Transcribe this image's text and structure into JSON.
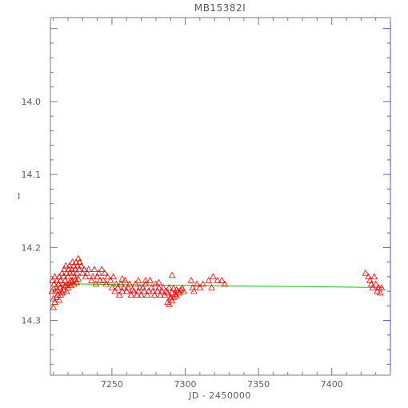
{
  "chart_data": {
    "type": "scatter",
    "title": "MB15382I",
    "xlabel": "JD - 2450000",
    "ylabel": "I",
    "xlim": [
      7208,
      7440
    ],
    "ylim": [
      14.375,
      13.885
    ],
    "y_inverted": true,
    "x_ticks": [
      7250,
      7300,
      7350,
      7400
    ],
    "x_tick_labels": [
      "7250",
      "7300",
      "7350",
      "7400"
    ],
    "y_ticks": [
      14.0,
      14.1,
      14.2,
      14.3
    ],
    "y_tick_labels": [
      "14.0",
      "14.1",
      "14.2",
      "14.3"
    ],
    "grid": false,
    "colors": {
      "axes": "#7a7a7a",
      "text": "#5a5a5a",
      "observed": "#ff0000",
      "model": "#00c800",
      "right_axis": "#5555cc"
    },
    "series": [
      {
        "marker": "triangle-open",
        "color": "#ff0000",
        "points": [
          [
            7209,
            14.26
          ],
          [
            7209.5,
            14.245
          ],
          [
            7210,
            14.27
          ],
          [
            7210.5,
            14.25
          ],
          [
            7211,
            14.24
          ],
          [
            7211.5,
            14.26
          ],
          [
            7212,
            14.255
          ],
          [
            7212.5,
            14.245
          ],
          [
            7213,
            14.265
          ],
          [
            7213.5,
            14.25
          ],
          [
            7214,
            14.24
          ],
          [
            7214.5,
            14.255
          ],
          [
            7215,
            14.245
          ],
          [
            7215.5,
            14.26
          ],
          [
            7216,
            14.235
          ],
          [
            7216.5,
            14.25
          ],
          [
            7217,
            14.24
          ],
          [
            7217.5,
            14.23
          ],
          [
            7218,
            14.245
          ],
          [
            7218.5,
            14.225
          ],
          [
            7219,
            14.235
          ],
          [
            7219.5,
            14.25
          ],
          [
            7220,
            14.24
          ],
          [
            7220.5,
            14.23
          ],
          [
            7221,
            14.225
          ],
          [
            7221.5,
            14.235
          ],
          [
            7222,
            14.245
          ],
          [
            7222.5,
            14.23
          ],
          [
            7223,
            14.22
          ],
          [
            7223.5,
            14.235
          ],
          [
            7224,
            14.225
          ],
          [
            7224.5,
            14.24
          ],
          [
            7225,
            14.23
          ],
          [
            7225.5,
            14.22
          ],
          [
            7226,
            14.235
          ],
          [
            7226.5,
            14.225
          ],
          [
            7227,
            14.215
          ],
          [
            7227.5,
            14.23
          ],
          [
            7228,
            14.22
          ],
          [
            7229,
            14.225
          ],
          [
            7230,
            14.235
          ],
          [
            7231,
            14.23
          ],
          [
            7232,
            14.24
          ],
          [
            7233,
            14.235
          ],
          [
            7234,
            14.23
          ],
          [
            7236,
            14.245
          ],
          [
            7237,
            14.24
          ],
          [
            7238,
            14.23
          ],
          [
            7239,
            14.25
          ],
          [
            7240,
            14.24
          ],
          [
            7241,
            14.235
          ],
          [
            7242,
            14.245
          ],
          [
            7243,
            14.23
          ],
          [
            7244,
            14.245
          ],
          [
            7245,
            14.235
          ],
          [
            7246,
            14.25
          ],
          [
            7247,
            14.24
          ],
          [
            7210,
            14.282
          ],
          [
            7211,
            14.275
          ],
          [
            7212,
            14.268
          ],
          [
            7213,
            14.258
          ],
          [
            7214,
            14.272
          ],
          [
            7215,
            14.265
          ],
          [
            7216,
            14.262
          ],
          [
            7217,
            14.258
          ],
          [
            7218,
            14.252
          ],
          [
            7219,
            14.26
          ],
          [
            7220,
            14.255
          ],
          [
            7221,
            14.248
          ],
          [
            7222,
            14.252
          ],
          [
            7223,
            14.246
          ],
          [
            7224,
            14.25
          ],
          [
            7225,
            14.244
          ],
          [
            7226,
            14.248
          ],
          [
            7227,
            14.243
          ],
          [
            7249,
            14.245
          ],
          [
            7250,
            14.255
          ],
          [
            7251,
            14.24
          ],
          [
            7252,
            14.26
          ],
          [
            7253,
            14.25
          ],
          [
            7254,
            14.255
          ],
          [
            7255,
            14.265
          ],
          [
            7256,
            14.25
          ],
          [
            7257,
            14.26
          ],
          [
            7258,
            14.255
          ],
          [
            7259,
            14.245
          ],
          [
            7260,
            14.26
          ],
          [
            7261,
            14.255
          ],
          [
            7262,
            14.25
          ],
          [
            7263,
            14.265
          ],
          [
            7264,
            14.258
          ],
          [
            7265,
            14.26
          ],
          [
            7266,
            14.25
          ],
          [
            7267,
            14.265
          ],
          [
            7268,
            14.26
          ],
          [
            7269,
            14.255
          ],
          [
            7270,
            14.265
          ],
          [
            7271,
            14.255
          ],
          [
            7272,
            14.26
          ],
          [
            7273,
            14.25
          ],
          [
            7274,
            14.265
          ],
          [
            7275,
            14.26
          ],
          [
            7276,
            14.245
          ],
          [
            7277,
            14.255
          ],
          [
            7278,
            14.26
          ],
          [
            7279,
            14.265
          ],
          [
            7280,
            14.25
          ],
          [
            7281,
            14.26
          ],
          [
            7282,
            14.255
          ],
          [
            7283,
            14.265
          ],
          [
            7284,
            14.26
          ],
          [
            7285,
            14.255
          ],
          [
            7286,
            14.265
          ],
          [
            7287,
            14.26
          ],
          [
            7288,
            14.275
          ],
          [
            7289,
            14.255
          ],
          [
            7290,
            14.27
          ],
          [
            7291,
            14.262
          ],
          [
            7292,
            14.256
          ],
          [
            7293,
            14.264
          ],
          [
            7294,
            14.258
          ],
          [
            7295,
            14.26
          ],
          [
            7296,
            14.262
          ],
          [
            7297,
            14.258
          ],
          [
            7298,
            14.256
          ],
          [
            7299,
            14.26
          ],
          [
            7257,
            14.243
          ],
          [
            7268,
            14.245
          ],
          [
            7273,
            14.245
          ],
          [
            7282,
            14.248
          ],
          [
            7288,
            14.262
          ],
          [
            7290,
            14.268
          ],
          [
            7291,
            14.273
          ],
          [
            7292,
            14.268
          ],
          [
            7294,
            14.266
          ],
          [
            7289,
            14.278
          ],
          [
            7291,
            14.238
          ],
          [
            7304,
            14.245
          ],
          [
            7305,
            14.255
          ],
          [
            7306,
            14.26
          ],
          [
            7308,
            14.25
          ],
          [
            7310,
            14.255
          ],
          [
            7312,
            14.25
          ],
          [
            7316,
            14.245
          ],
          [
            7318,
            14.255
          ],
          [
            7319,
            14.24
          ],
          [
            7322,
            14.245
          ],
          [
            7325,
            14.245
          ],
          [
            7327,
            14.25
          ],
          [
            7423,
            14.235
          ],
          [
            7425,
            14.24
          ],
          [
            7426,
            14.245
          ],
          [
            7427,
            14.25
          ],
          [
            7428,
            14.255
          ],
          [
            7429,
            14.24
          ],
          [
            7430,
            14.25
          ],
          [
            7431,
            14.26
          ],
          [
            7432,
            14.255
          ],
          [
            7433,
            14.262
          ],
          [
            7434,
            14.255
          ]
        ]
      },
      {
        "type": "line",
        "color": "#00c800",
        "x": [
          7209,
          7215,
          7222,
          7230,
          7260,
          7300,
          7350,
          7400,
          7435
        ],
        "y": [
          14.255,
          14.252,
          14.25,
          14.25,
          14.251,
          14.252,
          14.253,
          14.254,
          14.255
        ]
      }
    ]
  }
}
